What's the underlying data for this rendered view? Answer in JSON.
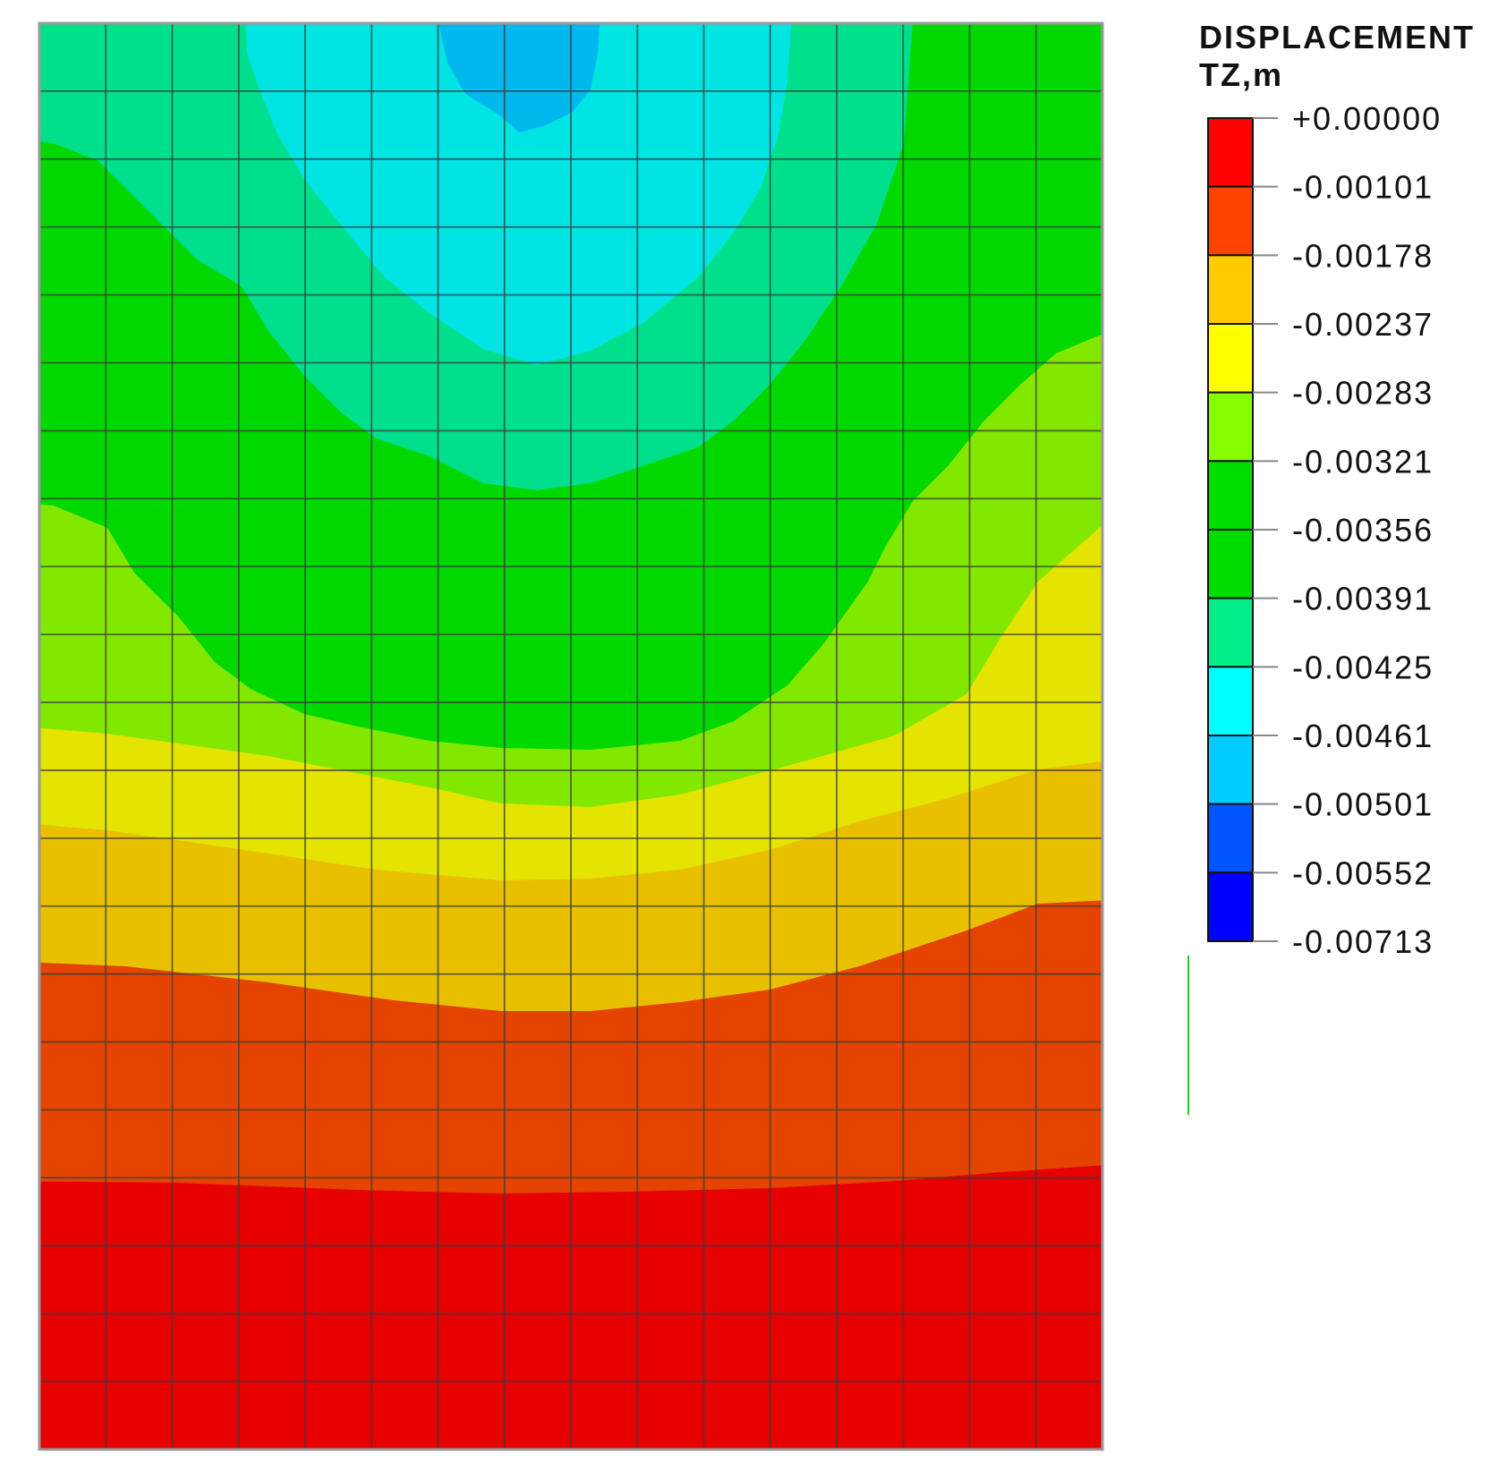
{
  "chart_data": {
    "type": "heatmap",
    "subtype": "finite-element contour plot",
    "legend": {
      "title_line1": "DISPLACEMENT",
      "title_line2": "TZ,m",
      "placement": "right",
      "levels": [
        "+0.00000",
        "-0.00101",
        "-0.00178",
        "-0.00237",
        "-0.00283",
        "-0.00321",
        "-0.00356",
        "-0.00391",
        "-0.00425",
        "-0.00461",
        "-0.00501",
        "-0.00552",
        "-0.00713"
      ],
      "band_colors": [
        "#ff0000",
        "#ff4400",
        "#ffcc00",
        "#ffff00",
        "#88ff00",
        "#00e000",
        "#00dd00",
        "#00ee88",
        "#00ffff",
        "#00ccff",
        "#0055ff",
        "#0000ff"
      ]
    },
    "plot_colors": {
      "red": "#e60000",
      "orange_red": "#e54400",
      "amber": "#e8c000",
      "yellow": "#e4e400",
      "yellow_green": "#82e800",
      "green": "#00d800",
      "green_cyan": "#00e08c",
      "cyan": "#00e4e4",
      "light_blue": "#00b8ee",
      "mesh_line": "#3c3c3c"
    },
    "mesh": {
      "columns": 16,
      "rows": 21,
      "grid": true
    },
    "contour_bands": [
      {
        "name": "red",
        "level_range": [
          "-0.00101",
          "+0.00000"
        ]
      },
      {
        "name": "orange-red",
        "level_range": [
          "-0.00178",
          "-0.00101"
        ]
      },
      {
        "name": "amber",
        "level_range": [
          "-0.00237",
          "-0.00178"
        ]
      },
      {
        "name": "yellow",
        "level_range": [
          "-0.00283",
          "-0.00237"
        ]
      },
      {
        "name": "yellow-green",
        "level_range": [
          "-0.00321",
          "-0.00283"
        ]
      },
      {
        "name": "green",
        "level_range": [
          "-0.00391",
          "-0.00321"
        ]
      },
      {
        "name": "green-cyan",
        "level_range": [
          "-0.00425",
          "-0.00391"
        ]
      },
      {
        "name": "cyan",
        "level_range": [
          "-0.00461",
          "-0.00425"
        ]
      },
      {
        "name": "light-blue",
        "level_range": [
          "-0.00501",
          "-0.00461"
        ]
      }
    ]
  }
}
